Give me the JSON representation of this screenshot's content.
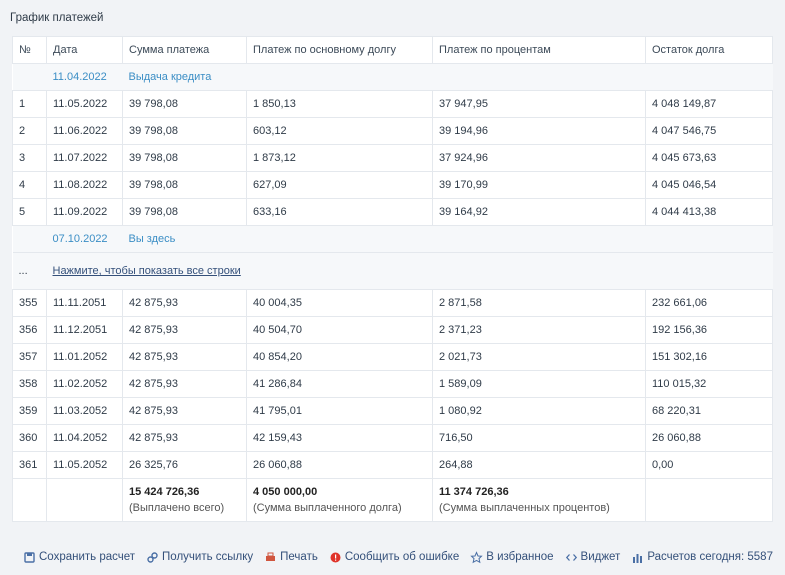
{
  "title": "График платежей",
  "table": {
    "headers": [
      "№",
      "Дата",
      "Сумма платежа",
      "Платеж по основному долгу",
      "Платеж по процентам",
      "Остаток долга"
    ],
    "issue": {
      "date": "11.04.2022",
      "label": "Выдача кредита"
    },
    "rows_start": [
      [
        "1",
        "11.05.2022",
        "39 798,08",
        "1 850,13",
        "37 947,95",
        "4 048 149,87"
      ],
      [
        "2",
        "11.06.2022",
        "39 798,08",
        "603,12",
        "39 194,96",
        "4 047 546,75"
      ],
      [
        "3",
        "11.07.2022",
        "39 798,08",
        "1 873,12",
        "37 924,96",
        "4 045 673,63"
      ],
      [
        "4",
        "11.08.2022",
        "39 798,08",
        "627,09",
        "39 170,99",
        "4 045 046,54"
      ],
      [
        "5",
        "11.09.2022",
        "39 798,08",
        "633,16",
        "39 164,92",
        "4 044 413,38"
      ]
    ],
    "current": {
      "date": "07.10.2022",
      "label": "Вы здесь"
    },
    "more": {
      "marker": "...",
      "link": "Нажмите, чтобы показать все строки"
    },
    "rows_end": [
      [
        "355",
        "11.11.2051",
        "42 875,93",
        "40 004,35",
        "2 871,58",
        "232 661,06"
      ],
      [
        "356",
        "11.12.2051",
        "42 875,93",
        "40 504,70",
        "2 371,23",
        "192 156,36"
      ],
      [
        "357",
        "11.01.2052",
        "42 875,93",
        "40 854,20",
        "2 021,73",
        "151 302,16"
      ],
      [
        "358",
        "11.02.2052",
        "42 875,93",
        "41 286,84",
        "1 589,09",
        "110 015,32"
      ],
      [
        "359",
        "11.03.2052",
        "42 875,93",
        "41 795,01",
        "1 080,92",
        "68 220,31"
      ],
      [
        "360",
        "11.04.2052",
        "42 875,93",
        "42 159,43",
        "716,50",
        "26 060,88"
      ],
      [
        "361",
        "11.05.2052",
        "26 325,76",
        "26 060,88",
        "264,88",
        "0,00"
      ]
    ],
    "totals": [
      {
        "value": "15 424 726,36",
        "note": "(Выплачено всего)"
      },
      {
        "value": "4 050 000,00",
        "note": "(Сумма выплаченного долга)"
      },
      {
        "value": "11 374 726,36",
        "note": "(Сумма выплаченных процентов)"
      }
    ]
  },
  "footer": {
    "actions": [
      "Сохранить расчет",
      "Получить ссылку",
      "Печать",
      "Сообщить об ошибке",
      "В избранное",
      "Виджет"
    ],
    "counter": "Расчетов сегодня: 5587"
  }
}
